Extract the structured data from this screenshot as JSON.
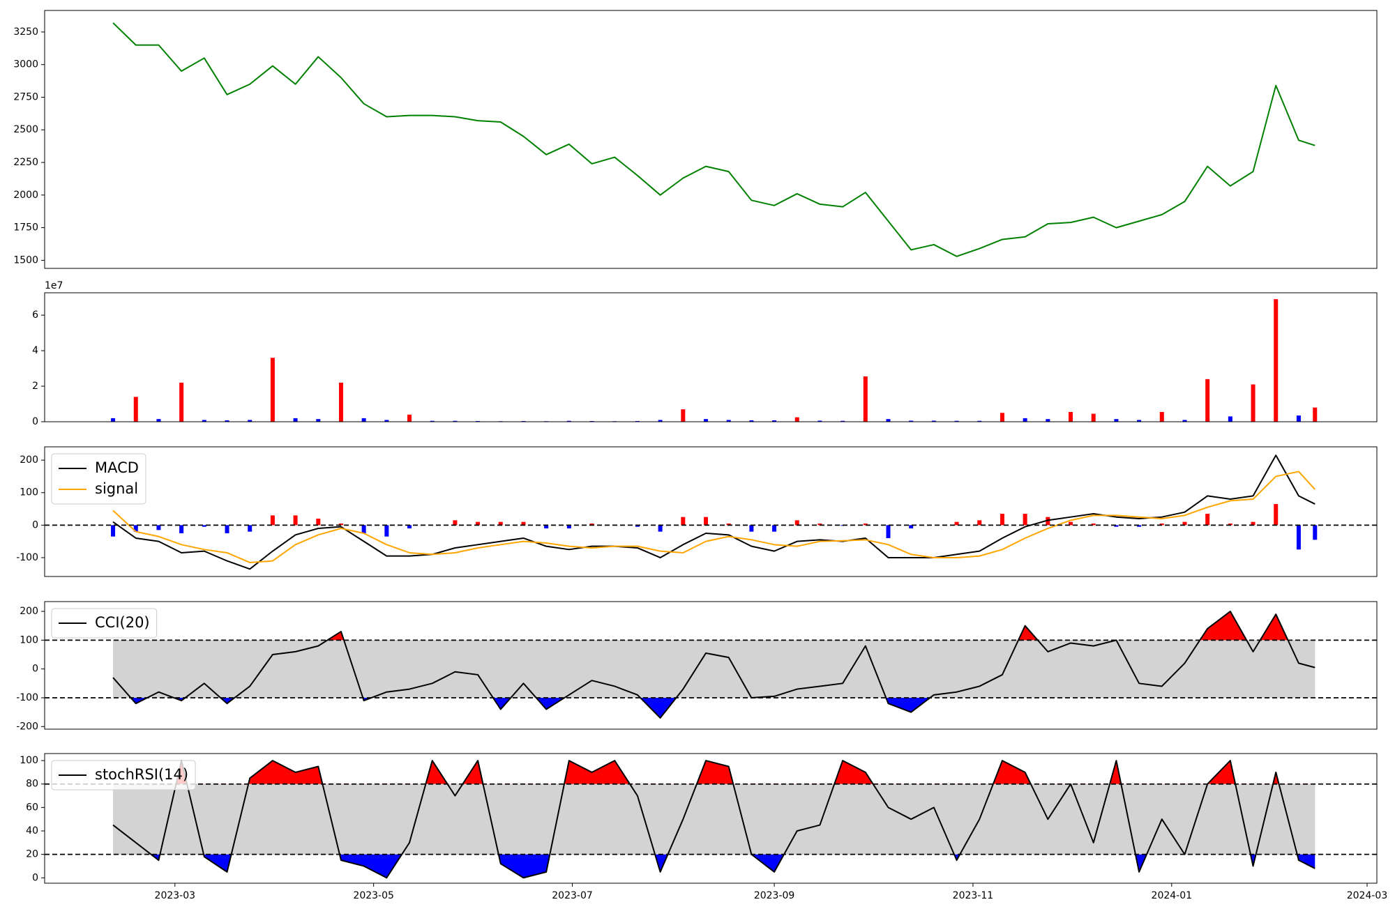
{
  "chart_data": [
    {
      "type": "line",
      "x": [
        "2023-02-10",
        "2023-02-17",
        "2023-02-24",
        "2023-03-03",
        "2023-03-10",
        "2023-03-17",
        "2023-03-24",
        "2023-03-31",
        "2023-04-07",
        "2023-04-14",
        "2023-04-21",
        "2023-04-28",
        "2023-05-05",
        "2023-05-12",
        "2023-05-19",
        "2023-05-26",
        "2023-06-02",
        "2023-06-09",
        "2023-06-16",
        "2023-06-23",
        "2023-06-30",
        "2023-07-07",
        "2023-07-14",
        "2023-07-21",
        "2023-07-28",
        "2023-08-04",
        "2023-08-11",
        "2023-08-18",
        "2023-08-25",
        "2023-09-01",
        "2023-09-08",
        "2023-09-15",
        "2023-09-22",
        "2023-09-29",
        "2023-10-06",
        "2023-10-13",
        "2023-10-20",
        "2023-10-27",
        "2023-11-03",
        "2023-11-10",
        "2023-11-17",
        "2023-11-24",
        "2023-12-01",
        "2023-12-08",
        "2023-12-15",
        "2023-12-22",
        "2023-12-29",
        "2024-01-05",
        "2024-01-12",
        "2024-01-19",
        "2024-01-26",
        "2024-02-02",
        "2024-02-09",
        "2024-02-14"
      ],
      "series": [
        {
          "color": "green",
          "values": [
            3320,
            3150,
            3150,
            2950,
            3050,
            2770,
            2850,
            2990,
            2850,
            3060,
            2900,
            2700,
            2600,
            2610,
            2610,
            2600,
            2570,
            2560,
            2450,
            2310,
            2390,
            2240,
            2290,
            2150,
            2000,
            2130,
            2220,
            2180,
            1960,
            1920,
            2010,
            1930,
            1910,
            2020,
            1800,
            1580,
            1620,
            1530,
            1590,
            1660,
            1680,
            1780,
            1790,
            1830,
            1750,
            1800,
            1850,
            1950,
            2220,
            2070,
            2180,
            2840,
            2420,
            2380
          ]
        }
      ],
      "xlim": [
        "2023-01-20",
        "2024-03-04"
      ],
      "ylim": [
        1438,
        3415
      ],
      "yticks": [
        1500,
        1750,
        2000,
        2250,
        2500,
        2750,
        3000,
        3250
      ]
    },
    {
      "type": "bar",
      "x": [
        "2023-02-10",
        "2023-02-17",
        "2023-02-24",
        "2023-03-03",
        "2023-03-10",
        "2023-03-17",
        "2023-03-24",
        "2023-03-31",
        "2023-04-07",
        "2023-04-14",
        "2023-04-21",
        "2023-04-28",
        "2023-05-05",
        "2023-05-12",
        "2023-05-19",
        "2023-05-26",
        "2023-06-02",
        "2023-06-09",
        "2023-06-16",
        "2023-06-23",
        "2023-06-30",
        "2023-07-07",
        "2023-07-14",
        "2023-07-21",
        "2023-07-28",
        "2023-08-04",
        "2023-08-11",
        "2023-08-18",
        "2023-08-25",
        "2023-09-01",
        "2023-09-08",
        "2023-09-15",
        "2023-09-22",
        "2023-09-29",
        "2023-10-06",
        "2023-10-13",
        "2023-10-20",
        "2023-10-27",
        "2023-11-03",
        "2023-11-10",
        "2023-11-17",
        "2023-11-24",
        "2023-12-01",
        "2023-12-08",
        "2023-12-15",
        "2023-12-22",
        "2023-12-29",
        "2024-01-05",
        "2024-01-12",
        "2024-01-19",
        "2024-01-26",
        "2024-02-02",
        "2024-02-09",
        "2024-02-14"
      ],
      "values": [
        2000000,
        14000000,
        1500000,
        22000000,
        1000000,
        800000,
        1000000,
        36000000,
        2000000,
        1500000,
        22000000,
        2000000,
        1000000,
        4000000,
        500000,
        500000,
        400000,
        300000,
        400000,
        300000,
        500000,
        400000,
        300000,
        400000,
        1000000,
        7000000,
        1500000,
        1000000,
        800000,
        800000,
        2500000,
        600000,
        500000,
        25500000,
        1500000,
        600000,
        600000,
        500000,
        500000,
        5000000,
        2000000,
        1500000,
        5500000,
        4500000,
        1500000,
        1000000,
        5500000,
        1000000,
        24000000,
        3000000,
        21000000,
        69000000,
        3500000,
        8000000
      ],
      "colors": [
        "#0000ff",
        "#ff0000",
        "#0000ff",
        "#ff0000",
        "#0000ff",
        "#0000ff",
        "#0000ff",
        "#ff0000",
        "#0000ff",
        "#0000ff",
        "#ff0000",
        "#0000ff",
        "#0000ff",
        "#ff0000",
        "#0000ff",
        "#0000ff",
        "#0000ff",
        "#0000ff",
        "#0000ff",
        "#0000ff",
        "#0000ff",
        "#0000ff",
        "#0000ff",
        "#0000ff",
        "#0000ff",
        "#ff0000",
        "#0000ff",
        "#0000ff",
        "#0000ff",
        "#0000ff",
        "#ff0000",
        "#0000ff",
        "#0000ff",
        "#ff0000",
        "#0000ff",
        "#0000ff",
        "#0000ff",
        "#0000ff",
        "#0000ff",
        "#ff0000",
        "#0000ff",
        "#0000ff",
        "#ff0000",
        "#ff0000",
        "#0000ff",
        "#0000ff",
        "#ff0000",
        "#0000ff",
        "#ff0000",
        "#0000ff",
        "#ff0000",
        "#ff0000",
        "#0000ff",
        "#ff0000"
      ],
      "xlim": [
        "2023-01-20",
        "2024-03-04"
      ],
      "ylim": [
        0,
        72600000
      ],
      "yticks": [
        0,
        {
          "value": 20000000,
          "label": "2"
        },
        {
          "value": 40000000,
          "label": "4"
        },
        {
          "value": 60000000,
          "label": "6"
        }
      ],
      "offset_label": "1e7"
    },
    {
      "type": "line",
      "x": [
        "2023-02-10",
        "2023-02-17",
        "2023-02-24",
        "2023-03-03",
        "2023-03-10",
        "2023-03-17",
        "2023-03-24",
        "2023-03-31",
        "2023-04-07",
        "2023-04-14",
        "2023-04-21",
        "2023-04-28",
        "2023-05-05",
        "2023-05-12",
        "2023-05-19",
        "2023-05-26",
        "2023-06-02",
        "2023-06-09",
        "2023-06-16",
        "2023-06-23",
        "2023-06-30",
        "2023-07-07",
        "2023-07-14",
        "2023-07-21",
        "2023-07-28",
        "2023-08-04",
        "2023-08-11",
        "2023-08-18",
        "2023-08-25",
        "2023-09-01",
        "2023-09-08",
        "2023-09-15",
        "2023-09-22",
        "2023-09-29",
        "2023-10-06",
        "2023-10-13",
        "2023-10-20",
        "2023-10-27",
        "2023-11-03",
        "2023-11-10",
        "2023-11-17",
        "2023-11-24",
        "2023-12-01",
        "2023-12-08",
        "2023-12-15",
        "2023-12-22",
        "2023-12-29",
        "2024-01-05",
        "2024-01-12",
        "2024-01-19",
        "2024-01-26",
        "2024-02-02",
        "2024-02-09",
        "2024-02-14"
      ],
      "series": [
        {
          "name": "MACD",
          "color": "black",
          "values": [
            10,
            -40,
            -50,
            -85,
            -80,
            -110,
            -135,
            -80,
            -30,
            -10,
            -5,
            -50,
            -95,
            -95,
            -90,
            -70,
            -60,
            -50,
            -40,
            -65,
            -75,
            -65,
            -65,
            -70,
            -100,
            -60,
            -25,
            -30,
            -65,
            -80,
            -50,
            -45,
            -50,
            -40,
            -100,
            -100,
            -100,
            -90,
            -80,
            -40,
            -5,
            15,
            25,
            35,
            25,
            20,
            25,
            40,
            90,
            80,
            90,
            215,
            90,
            65
          ]
        },
        {
          "name": "signal",
          "color": "orange",
          "values": [
            45,
            -20,
            -35,
            -60,
            -75,
            -85,
            -115,
            -110,
            -60,
            -30,
            -10,
            -25,
            -60,
            -85,
            -90,
            -85,
            -70,
            -60,
            -50,
            -55,
            -65,
            -70,
            -65,
            -65,
            -80,
            -85,
            -50,
            -35,
            -45,
            -60,
            -65,
            -50,
            -48,
            -45,
            -60,
            -90,
            -100,
            -100,
            -95,
            -75,
            -40,
            -10,
            15,
            30,
            30,
            25,
            20,
            30,
            55,
            75,
            80,
            150,
            165,
            110
          ]
        }
      ],
      "histogram": {
        "values": [
          -35,
          -20,
          -15,
          -25,
          -5,
          -25,
          -20,
          30,
          30,
          20,
          5,
          -25,
          -35,
          -10,
          0,
          15,
          10,
          10,
          10,
          -10,
          -10,
          5,
          0,
          -5,
          -20,
          25,
          25,
          5,
          -20,
          -20,
          15,
          5,
          -2,
          5,
          -40,
          -10,
          0,
          10,
          15,
          35,
          35,
          25,
          10,
          5,
          -5,
          -5,
          5,
          10,
          35,
          5,
          10,
          65,
          -75,
          -45
        ],
        "pos_color": "red",
        "neg_color": "blue"
      },
      "hline": 0,
      "legend": "upper left",
      "xlim": [
        "2023-01-20",
        "2024-03-04"
      ],
      "ylim": [
        -158,
        241
      ],
      "yticks": [
        -100,
        0,
        100,
        200
      ]
    },
    {
      "type": "line",
      "x": [
        "2023-02-10",
        "2023-02-17",
        "2023-02-24",
        "2023-03-03",
        "2023-03-10",
        "2023-03-17",
        "2023-03-24",
        "2023-03-31",
        "2023-04-07",
        "2023-04-14",
        "2023-04-21",
        "2023-04-28",
        "2023-05-05",
        "2023-05-12",
        "2023-05-19",
        "2023-05-26",
        "2023-06-02",
        "2023-06-09",
        "2023-06-16",
        "2023-06-23",
        "2023-06-30",
        "2023-07-07",
        "2023-07-14",
        "2023-07-21",
        "2023-07-28",
        "2023-08-04",
        "2023-08-11",
        "2023-08-18",
        "2023-08-25",
        "2023-09-01",
        "2023-09-08",
        "2023-09-15",
        "2023-09-22",
        "2023-09-29",
        "2023-10-06",
        "2023-10-13",
        "2023-10-20",
        "2023-10-27",
        "2023-11-03",
        "2023-11-10",
        "2023-11-17",
        "2023-11-24",
        "2023-12-01",
        "2023-12-08",
        "2023-12-15",
        "2023-12-22",
        "2023-12-29",
        "2024-01-05",
        "2024-01-12",
        "2024-01-19",
        "2024-01-26",
        "2024-02-02",
        "2024-02-09",
        "2024-02-14"
      ],
      "series": [
        {
          "name": "CCI(20)",
          "color": "black",
          "values": [
            -30,
            -120,
            -80,
            -110,
            -50,
            -120,
            -60,
            50,
            60,
            80,
            130,
            -110,
            -80,
            -70,
            -50,
            -10,
            -20,
            -140,
            -50,
            -140,
            -90,
            -40,
            -60,
            -90,
            -170,
            -70,
            55,
            40,
            -100,
            -95,
            -70,
            -60,
            -50,
            80,
            -120,
            -150,
            -90,
            -80,
            -60,
            -20,
            150,
            60,
            90,
            80,
            100,
            -50,
            -60,
            20,
            140,
            200,
            60,
            190,
            20,
            5
          ]
        }
      ],
      "bands": [
        -100,
        100
      ],
      "band_fill": "lightgrey",
      "upper_fill": "red",
      "lower_fill": "blue",
      "legend": "upper left",
      "xlim": [
        "2023-01-20",
        "2024-03-04"
      ],
      "ylim": [
        -209,
        234
      ],
      "yticks": [
        -200,
        -100,
        0,
        100,
        200
      ]
    },
    {
      "type": "line",
      "x": [
        "2023-02-10",
        "2023-02-17",
        "2023-02-24",
        "2023-03-03",
        "2023-03-10",
        "2023-03-17",
        "2023-03-24",
        "2023-03-31",
        "2023-04-07",
        "2023-04-14",
        "2023-04-21",
        "2023-04-28",
        "2023-05-05",
        "2023-05-12",
        "2023-05-19",
        "2023-05-26",
        "2023-06-02",
        "2023-06-09",
        "2023-06-16",
        "2023-06-23",
        "2023-06-30",
        "2023-07-07",
        "2023-07-14",
        "2023-07-21",
        "2023-07-28",
        "2023-08-04",
        "2023-08-11",
        "2023-08-18",
        "2023-08-25",
        "2023-09-01",
        "2023-09-08",
        "2023-09-15",
        "2023-09-22",
        "2023-09-29",
        "2023-10-06",
        "2023-10-13",
        "2023-10-20",
        "2023-10-27",
        "2023-11-03",
        "2023-11-10",
        "2023-11-17",
        "2023-11-24",
        "2023-12-01",
        "2023-12-08",
        "2023-12-15",
        "2023-12-22",
        "2023-12-29",
        "2024-01-05",
        "2024-01-12",
        "2024-01-19",
        "2024-01-26",
        "2024-02-02",
        "2024-02-09",
        "2024-02-14"
      ],
      "series": [
        {
          "name": "stochRSI(14)",
          "color": "black",
          "values": [
            45,
            30,
            15,
            100,
            18,
            5,
            85,
            100,
            90,
            95,
            15,
            10,
            0,
            30,
            100,
            70,
            100,
            12,
            0,
            5,
            100,
            90,
            100,
            70,
            5,
            50,
            100,
            95,
            20,
            5,
            40,
            45,
            100,
            90,
            60,
            50,
            60,
            15,
            50,
            100,
            90,
            50,
            80,
            30,
            100,
            5,
            50,
            20,
            80,
            100,
            10,
            90,
            15,
            8
          ]
        }
      ],
      "bands": [
        20,
        80
      ],
      "band_fill": "lightgrey",
      "upper_fill": "red",
      "lower_fill": "blue",
      "legend": "upper left",
      "xlim": [
        "2023-01-20",
        "2024-03-04"
      ],
      "ylim": [
        -4.6,
        106
      ],
      "yticks": [
        0,
        20,
        40,
        60,
        80,
        100
      ],
      "xticks": [
        {
          "value": "2023-03-01",
          "label": "2023-03"
        },
        {
          "value": "2023-05-01",
          "label": "2023-05"
        },
        {
          "value": "2023-07-01",
          "label": "2023-07"
        },
        {
          "value": "2023-09-01",
          "label": "2023-09"
        },
        {
          "value": "2023-11-01",
          "label": "2023-11"
        },
        {
          "value": "2024-01-01",
          "label": "2024-01"
        },
        {
          "value": "2024-03-01",
          "label": "2024-03"
        }
      ]
    }
  ]
}
